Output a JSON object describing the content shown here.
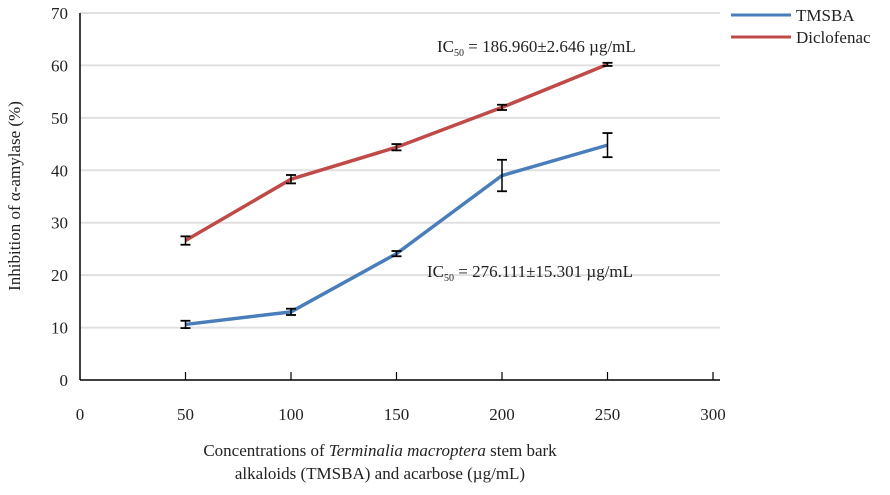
{
  "chart_data": {
    "type": "line",
    "title": "",
    "xlabel_parts": [
      "Concentrations of ",
      "Terminalia macroptera",
      " stem bark"
    ],
    "xlabel_line2": "alkaloids (TMSBA) and acarbose (µg/mL)",
    "ylabel": "Inhibition of α-amylase (%)",
    "xlim": [
      0,
      300
    ],
    "ylim": [
      0,
      70
    ],
    "x_ticks": [
      0,
      50,
      100,
      150,
      200,
      250,
      300
    ],
    "y_ticks": [
      0,
      10,
      20,
      30,
      40,
      50,
      60,
      70
    ],
    "grid": "horizontal",
    "legend_position": "top-right",
    "x": [
      50,
      100,
      150,
      200,
      250
    ],
    "series": [
      {
        "name": "TMSBA",
        "color": "#4a7ebb",
        "values": [
          10.6,
          13.0,
          24.1,
          39.0,
          44.8
        ],
        "errors": [
          0.7,
          0.6,
          0.5,
          3.0,
          2.3
        ]
      },
      {
        "name": "Diclofenac",
        "color": "#be4b48",
        "values": [
          26.6,
          38.3,
          44.4,
          52.0,
          60.2
        ],
        "errors": [
          0.8,
          0.8,
          0.6,
          0.5,
          0.3
        ]
      }
    ],
    "annotations": [
      {
        "prefix": "IC",
        "sub": "50",
        "text": " = 186.960±2.646 µg/mL",
        "series": "Diclofenac"
      },
      {
        "prefix": "IC",
        "sub": "50",
        "text": " = 276.111±15.301 µg/mL",
        "series": "TMSBA"
      }
    ]
  }
}
